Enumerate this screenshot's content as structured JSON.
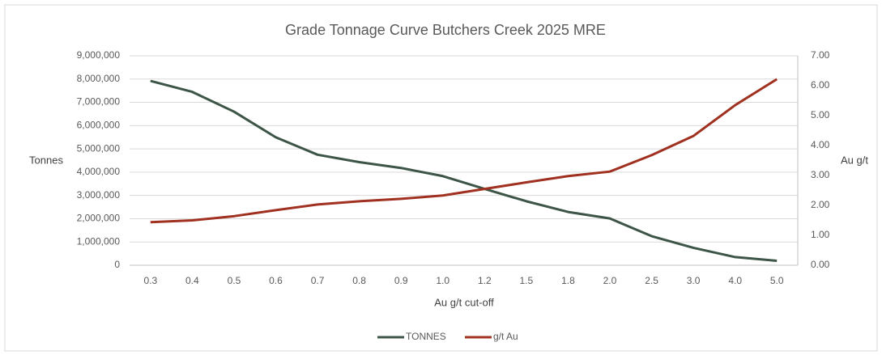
{
  "chart_data": {
    "type": "line",
    "title": "Grade Tonnage Curve Butchers Creek 2025 MRE",
    "x_label": "Au g/t cut-off",
    "y_label": "Tonnes",
    "y2_label": "Au g/t",
    "categories": [
      "0.3",
      "0.4",
      "0.5",
      "0.6",
      "0.7",
      "0.8",
      "0.9",
      "1.0",
      "1.2",
      "1.5",
      "1.8",
      "2.0",
      "2.5",
      "3.0",
      "4.0",
      "5.0"
    ],
    "series": [
      {
        "name": "TONNES",
        "color": "#3d5546",
        "values": [
          7920000,
          7450000,
          6600000,
          5500000,
          4750000,
          4430000,
          4180000,
          3830000,
          3280000,
          2750000,
          2290000,
          2010000,
          1250000,
          750000,
          350000,
          190000
        ]
      },
      {
        "name": "g/t Au",
        "color": "#a0301f",
        "axis": "y2",
        "values": [
          1.44,
          1.5,
          1.64,
          1.84,
          2.03,
          2.14,
          2.22,
          2.33,
          2.55,
          2.77,
          2.98,
          3.13,
          3.68,
          4.32,
          5.35,
          6.22
        ]
      }
    ],
    "ylim": [
      0,
      9000000
    ],
    "yticks": [
      0,
      {
        "value": 1000000,
        "label": "1,000,000"
      },
      {
        "value": 2000000,
        "label": "2,000,000"
      },
      {
        "value": 3000000,
        "label": "3,000,000"
      },
      {
        "value": 4000000,
        "label": "4,000,000"
      },
      {
        "value": 5000000,
        "label": "5,000,000"
      },
      {
        "value": 6000000,
        "label": "6,000,000"
      },
      {
        "value": 7000000,
        "label": "7,000,000"
      },
      {
        "value": 8000000,
        "label": "8,000,000"
      },
      {
        "value": 9000000,
        "label": "9,000,000"
      }
    ],
    "y2lim": [
      0,
      7
    ],
    "y2ticks": [
      {
        "value": 0,
        "label": "0.00"
      },
      {
        "value": 1,
        "label": "1.00"
      },
      {
        "value": 2,
        "label": "2.00"
      },
      {
        "value": 3,
        "label": "3.00"
      },
      {
        "value": 4,
        "label": "4.00"
      },
      {
        "value": 5,
        "label": "5.00"
      },
      {
        "value": 6,
        "label": "6.00"
      },
      {
        "value": 7,
        "label": "7.00"
      }
    ],
    "grid": true,
    "legend": "bottom"
  }
}
